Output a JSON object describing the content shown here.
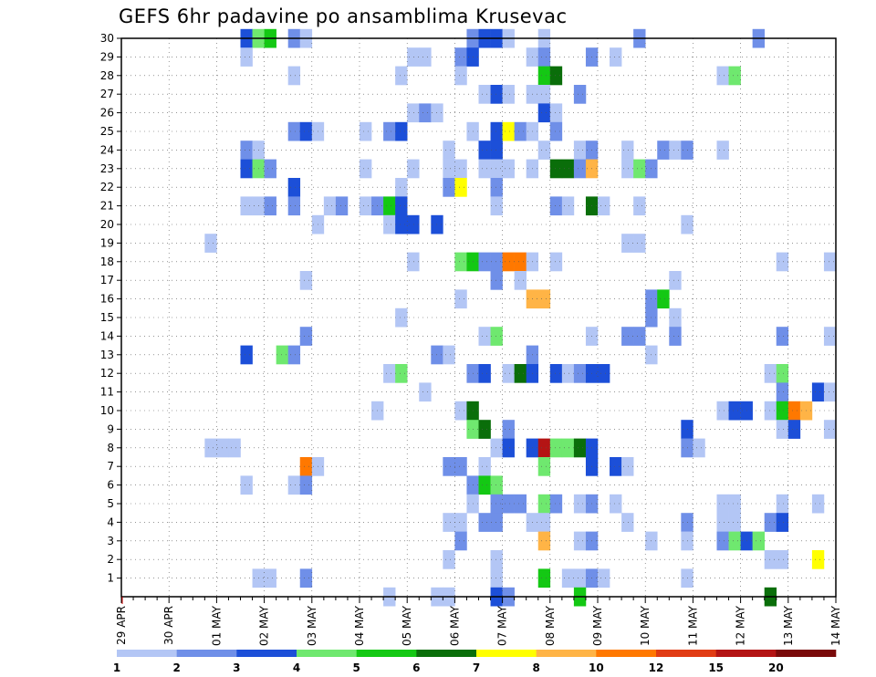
{
  "chart_data": {
    "type": "heatmap",
    "title": "GEFS 6hr padavine po ansamblima Krusevac",
    "x_tick_labels": [
      "29 APR",
      "30 APR",
      "01 MAY",
      "02 MAY",
      "03 MAY",
      "04 MAY",
      "05 MAY",
      "06 MAY",
      "07 MAY",
      "08 MAY",
      "09 MAY",
      "10 MAY",
      "11 MAY",
      "12 MAY",
      "13 MAY",
      "14 MAY"
    ],
    "x_steps_per_day": 4,
    "x_range": [
      0,
      60
    ],
    "y_tick_labels": [
      "1",
      "2",
      "3",
      "4",
      "5",
      "6",
      "7",
      "8",
      "9",
      "10",
      "11",
      "12",
      "13",
      "14",
      "15",
      "16",
      "17",
      "18",
      "19",
      "20",
      "21",
      "22",
      "23",
      "24",
      "25",
      "26",
      "27",
      "28",
      "29",
      "30"
    ],
    "y_range": [
      0,
      30
    ],
    "grid": true,
    "colorbar": {
      "labels": [
        "1",
        "2",
        "3",
        "4",
        "5",
        "6",
        "7",
        "8",
        "10",
        "12",
        "15",
        "20"
      ],
      "colors": [
        "#b3c6f5",
        "#6f8fe8",
        "#1c4fd8",
        "#6fe86f",
        "#14c814",
        "#0a6e0a",
        "#ffff00",
        "#ffb446",
        "#ff7800",
        "#e13c14",
        "#b41414",
        "#7a0a0a"
      ]
    },
    "cells": [
      [
        30,
        10,
        3
      ],
      [
        30,
        11,
        4
      ],
      [
        30,
        12,
        5
      ],
      [
        30,
        14,
        2
      ],
      [
        30,
        15,
        1
      ],
      [
        30,
        29,
        2
      ],
      [
        30,
        30,
        3
      ],
      [
        30,
        31,
        3
      ],
      [
        30,
        32,
        1
      ],
      [
        30,
        35,
        1
      ],
      [
        30,
        43,
        2
      ],
      [
        30,
        53,
        2
      ],
      [
        29,
        10,
        1
      ],
      [
        29,
        24,
        1
      ],
      [
        29,
        25,
        1
      ],
      [
        29,
        28,
        2
      ],
      [
        29,
        29,
        3
      ],
      [
        29,
        34,
        1
      ],
      [
        29,
        35,
        2
      ],
      [
        29,
        39,
        2
      ],
      [
        29,
        41,
        1
      ],
      [
        28,
        14,
        1
      ],
      [
        28,
        23,
        1
      ],
      [
        28,
        28,
        1
      ],
      [
        28,
        35,
        5
      ],
      [
        28,
        36,
        6
      ],
      [
        28,
        50,
        1
      ],
      [
        28,
        51,
        4
      ],
      [
        27,
        30,
        1
      ],
      [
        27,
        31,
        3
      ],
      [
        27,
        32,
        1
      ],
      [
        27,
        34,
        1
      ],
      [
        27,
        35,
        1
      ],
      [
        27,
        38,
        2
      ],
      [
        26,
        24,
        1
      ],
      [
        26,
        25,
        2
      ],
      [
        26,
        26,
        1
      ],
      [
        26,
        35,
        3
      ],
      [
        26,
        36,
        1
      ],
      [
        25,
        14,
        2
      ],
      [
        25,
        15,
        3
      ],
      [
        25,
        16,
        1
      ],
      [
        25,
        20,
        1
      ],
      [
        25,
        22,
        2
      ],
      [
        25,
        23,
        3
      ],
      [
        25,
        29,
        1
      ],
      [
        25,
        31,
        3
      ],
      [
        25,
        32,
        7
      ],
      [
        25,
        33,
        2
      ],
      [
        25,
        34,
        1
      ],
      [
        25,
        36,
        2
      ],
      [
        24,
        10,
        2
      ],
      [
        24,
        11,
        1
      ],
      [
        24,
        27,
        1
      ],
      [
        24,
        30,
        3
      ],
      [
        24,
        31,
        3
      ],
      [
        24,
        35,
        1
      ],
      [
        24,
        38,
        1
      ],
      [
        24,
        39,
        2
      ],
      [
        24,
        42,
        1
      ],
      [
        24,
        45,
        2
      ],
      [
        24,
        46,
        1
      ],
      [
        24,
        47,
        2
      ],
      [
        24,
        50,
        1
      ],
      [
        23,
        10,
        3
      ],
      [
        23,
        11,
        4
      ],
      [
        23,
        12,
        2
      ],
      [
        23,
        20,
        1
      ],
      [
        23,
        24,
        1
      ],
      [
        23,
        27,
        1
      ],
      [
        23,
        28,
        1
      ],
      [
        23,
        30,
        1
      ],
      [
        23,
        31,
        1
      ],
      [
        23,
        32,
        1
      ],
      [
        23,
        34,
        1
      ],
      [
        23,
        36,
        6
      ],
      [
        23,
        37,
        6
      ],
      [
        23,
        38,
        2
      ],
      [
        23,
        39,
        8
      ],
      [
        23,
        42,
        1
      ],
      [
        23,
        43,
        4
      ],
      [
        23,
        44,
        2
      ],
      [
        22,
        14,
        3
      ],
      [
        22,
        23,
        1
      ],
      [
        22,
        27,
        2
      ],
      [
        22,
        28,
        7
      ],
      [
        22,
        31,
        2
      ],
      [
        21,
        10,
        1
      ],
      [
        21,
        11,
        1
      ],
      [
        21,
        12,
        2
      ],
      [
        21,
        14,
        2
      ],
      [
        21,
        17,
        1
      ],
      [
        21,
        18,
        2
      ],
      [
        21,
        20,
        1
      ],
      [
        21,
        21,
        2
      ],
      [
        21,
        22,
        5
      ],
      [
        21,
        23,
        3
      ],
      [
        21,
        31,
        1
      ],
      [
        21,
        36,
        2
      ],
      [
        21,
        37,
        1
      ],
      [
        21,
        39,
        6
      ],
      [
        21,
        40,
        1
      ],
      [
        21,
        43,
        1
      ],
      [
        20,
        16,
        1
      ],
      [
        20,
        22,
        1
      ],
      [
        20,
        23,
        3
      ],
      [
        20,
        24,
        3
      ],
      [
        20,
        26,
        3
      ],
      [
        20,
        47,
        1
      ],
      [
        19,
        7,
        1
      ],
      [
        19,
        42,
        1
      ],
      [
        19,
        43,
        1
      ],
      [
        18,
        24,
        1
      ],
      [
        18,
        28,
        4
      ],
      [
        18,
        29,
        5
      ],
      [
        18,
        30,
        2
      ],
      [
        18,
        31,
        2
      ],
      [
        18,
        32,
        9
      ],
      [
        18,
        33,
        9
      ],
      [
        18,
        34,
        1
      ],
      [
        18,
        36,
        1
      ],
      [
        18,
        55,
        1
      ],
      [
        18,
        59,
        1
      ],
      [
        17,
        31,
        2
      ],
      [
        17,
        33,
        1
      ],
      [
        17,
        15,
        1
      ],
      [
        17,
        46,
        1
      ],
      [
        16,
        34,
        8
      ],
      [
        16,
        35,
        8
      ],
      [
        16,
        28,
        1
      ],
      [
        16,
        44,
        2
      ],
      [
        16,
        45,
        5
      ],
      [
        15,
        23,
        1
      ],
      [
        15,
        44,
        2
      ],
      [
        15,
        46,
        1
      ],
      [
        14,
        15,
        2
      ],
      [
        14,
        30,
        1
      ],
      [
        14,
        31,
        4
      ],
      [
        14,
        39,
        1
      ],
      [
        14,
        42,
        2
      ],
      [
        14,
        43,
        2
      ],
      [
        14,
        46,
        2
      ],
      [
        14,
        55,
        2
      ],
      [
        14,
        59,
        1
      ],
      [
        14,
        60,
        3
      ],
      [
        13,
        10,
        3
      ],
      [
        13,
        13,
        4
      ],
      [
        13,
        14,
        2
      ],
      [
        13,
        26,
        2
      ],
      [
        13,
        27,
        1
      ],
      [
        13,
        34,
        2
      ],
      [
        13,
        44,
        1
      ],
      [
        12,
        22,
        1
      ],
      [
        12,
        23,
        4
      ],
      [
        12,
        29,
        2
      ],
      [
        12,
        30,
        3
      ],
      [
        12,
        32,
        1
      ],
      [
        12,
        33,
        6
      ],
      [
        12,
        34,
        3
      ],
      [
        12,
        36,
        3
      ],
      [
        12,
        37,
        1
      ],
      [
        12,
        38,
        2
      ],
      [
        12,
        39,
        3
      ],
      [
        12,
        40,
        3
      ],
      [
        12,
        54,
        1
      ],
      [
        12,
        55,
        4
      ],
      [
        11,
        25,
        1
      ],
      [
        11,
        55,
        2
      ],
      [
        11,
        58,
        3
      ],
      [
        11,
        59,
        1
      ],
      [
        11,
        60,
        2
      ],
      [
        10,
        21,
        1
      ],
      [
        10,
        28,
        1
      ],
      [
        10,
        29,
        6
      ],
      [
        10,
        50,
        1
      ],
      [
        10,
        51,
        3
      ],
      [
        10,
        52,
        3
      ],
      [
        10,
        54,
        1
      ],
      [
        10,
        55,
        5
      ],
      [
        10,
        56,
        9
      ],
      [
        10,
        57,
        8
      ],
      [
        9,
        29,
        4
      ],
      [
        9,
        30,
        6
      ],
      [
        9,
        32,
        2
      ],
      [
        9,
        47,
        3
      ],
      [
        9,
        55,
        1
      ],
      [
        9,
        56,
        3
      ],
      [
        9,
        59,
        1
      ],
      [
        9,
        60,
        3
      ],
      [
        8,
        7,
        1
      ],
      [
        8,
        8,
        1
      ],
      [
        8,
        9,
        1
      ],
      [
        8,
        31,
        1
      ],
      [
        8,
        32,
        3
      ],
      [
        8,
        34,
        3
      ],
      [
        8,
        35,
        11
      ],
      [
        8,
        36,
        4
      ],
      [
        8,
        37,
        4
      ],
      [
        8,
        38,
        6
      ],
      [
        8,
        39,
        3
      ],
      [
        8,
        47,
        2
      ],
      [
        8,
        48,
        1
      ],
      [
        7,
        15,
        9
      ],
      [
        7,
        16,
        1
      ],
      [
        7,
        27,
        2
      ],
      [
        7,
        28,
        2
      ],
      [
        7,
        30,
        1
      ],
      [
        7,
        35,
        4
      ],
      [
        7,
        39,
        3
      ],
      [
        7,
        41,
        3
      ],
      [
        7,
        42,
        1
      ],
      [
        6,
        10,
        1
      ],
      [
        6,
        14,
        1
      ],
      [
        6,
        15,
        2
      ],
      [
        6,
        29,
        2
      ],
      [
        6,
        30,
        5
      ],
      [
        6,
        31,
        4
      ],
      [
        5,
        29,
        1
      ],
      [
        5,
        31,
        2
      ],
      [
        5,
        32,
        2
      ],
      [
        5,
        33,
        2
      ],
      [
        5,
        35,
        4
      ],
      [
        5,
        36,
        2
      ],
      [
        5,
        38,
        1
      ],
      [
        5,
        39,
        2
      ],
      [
        5,
        41,
        1
      ],
      [
        5,
        50,
        1
      ],
      [
        5,
        51,
        1
      ],
      [
        5,
        55,
        1
      ],
      [
        5,
        58,
        1
      ],
      [
        4,
        27,
        1
      ],
      [
        4,
        28,
        1
      ],
      [
        4,
        30,
        2
      ],
      [
        4,
        31,
        2
      ],
      [
        4,
        34,
        1
      ],
      [
        4,
        35,
        1
      ],
      [
        4,
        42,
        1
      ],
      [
        4,
        47,
        2
      ],
      [
        4,
        50,
        1
      ],
      [
        4,
        51,
        1
      ],
      [
        4,
        54,
        2
      ],
      [
        4,
        55,
        3
      ],
      [
        3,
        28,
        2
      ],
      [
        3,
        35,
        8
      ],
      [
        3,
        38,
        1
      ],
      [
        3,
        39,
        2
      ],
      [
        3,
        44,
        1
      ],
      [
        3,
        47,
        1
      ],
      [
        3,
        50,
        2
      ],
      [
        3,
        51,
        4
      ],
      [
        3,
        52,
        3
      ],
      [
        3,
        53,
        4
      ],
      [
        2,
        27,
        1
      ],
      [
        2,
        31,
        1
      ],
      [
        2,
        54,
        1
      ],
      [
        2,
        55,
        1
      ],
      [
        2,
        58,
        7
      ],
      [
        1,
        11,
        1
      ],
      [
        1,
        12,
        1
      ],
      [
        1,
        15,
        2
      ],
      [
        1,
        31,
        1
      ],
      [
        1,
        35,
        5
      ],
      [
        1,
        37,
        1
      ],
      [
        1,
        38,
        1
      ],
      [
        1,
        39,
        2
      ],
      [
        1,
        40,
        1
      ],
      [
        1,
        47,
        1
      ],
      [
        0,
        22,
        1
      ],
      [
        0,
        26,
        1
      ],
      [
        0,
        27,
        1
      ],
      [
        0,
        31,
        3
      ],
      [
        0,
        32,
        2
      ],
      [
        0,
        38,
        5
      ],
      [
        0,
        54,
        6
      ]
    ]
  }
}
